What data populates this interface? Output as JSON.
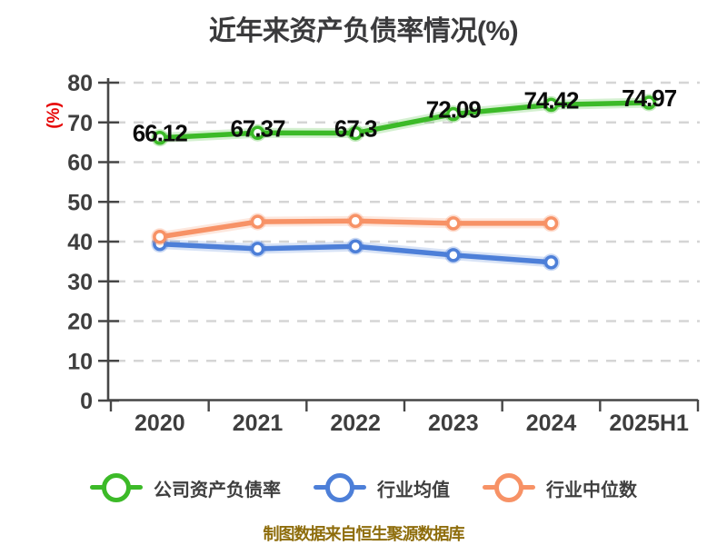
{
  "title": "近年来资产负债率情况(%)",
  "y_axis_label": "(%)",
  "footer": "制图数据来自恒生聚源数据库",
  "colors": {
    "title": "#3a3a3c",
    "axis": "#464646",
    "grid": "#d5d5d5",
    "tick_text": "#3e3e3e",
    "data_label": "#0c0c0c",
    "y_unit_red": "#e60505",
    "footer": "#8e6d0c",
    "background": "#ffffff"
  },
  "chart_data": {
    "type": "line",
    "title": "近年来资产负债率情况(%)",
    "xlabel": "",
    "ylabel": "(%)",
    "categories": [
      "2020",
      "2021",
      "2022",
      "2023",
      "2024",
      "2025H1"
    ],
    "ylim": [
      0,
      80
    ],
    "y_ticks": [
      0,
      10,
      20,
      30,
      40,
      50,
      60,
      70,
      80
    ],
    "grid": "horizontal-dashed",
    "legend_position": "bottom",
    "series": [
      {
        "name": "公司资产负债率",
        "color": "#3cba28",
        "values": [
          66.12,
          67.37,
          67.3,
          72.09,
          74.42,
          74.97
        ],
        "labels": [
          "66.12",
          "67.37",
          "67.3",
          "72.09",
          "74.42",
          "74.97"
        ]
      },
      {
        "name": "行业均值",
        "color": "#4d7fd8",
        "values": [
          39.4,
          38.2,
          38.8,
          36.6,
          34.8
        ],
        "labels": null
      },
      {
        "name": "行业中位数",
        "color": "#f79266",
        "values": [
          41.2,
          45.0,
          45.2,
          44.6,
          44.6
        ],
        "labels": null
      }
    ]
  }
}
